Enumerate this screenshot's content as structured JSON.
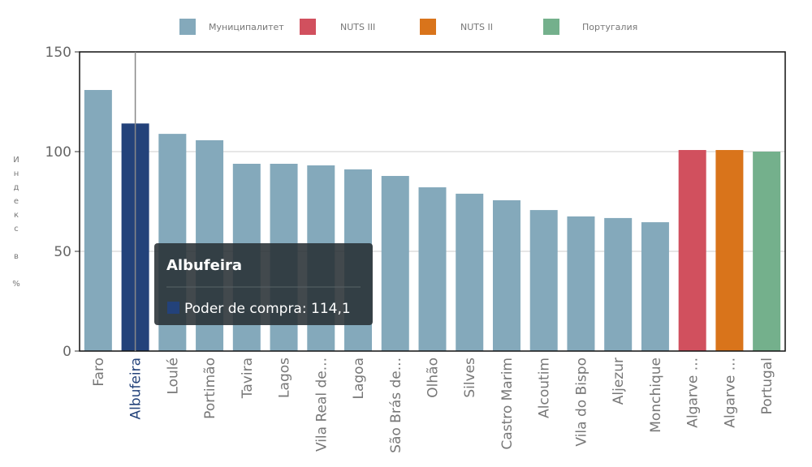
{
  "chart_data": {
    "type": "bar",
    "ylabel": "Индекс в %",
    "ylim": [
      0,
      150
    ],
    "yticks": [
      0,
      50,
      100,
      150
    ],
    "grid": true,
    "legend_placement": "top",
    "legend": [
      {
        "label": "Муниципалитет",
        "color": "#84a9bb"
      },
      {
        "label": "NUTS III",
        "color": "#d1505e"
      },
      {
        "label": "NUTS II",
        "color": "#d9741b"
      },
      {
        "label": "Португалия",
        "color": "#74b08c"
      }
    ],
    "categories": [
      "Faro",
      "Albufeira",
      "Loulé",
      "Portimão",
      "Tavira",
      "Lagos",
      "Vila Real de...",
      "Lagoa",
      "São Brás de...",
      "Olhão",
      "Silves",
      "Castro Marim",
      "Alcoutim",
      "Vila do Bispo",
      "Aljezur",
      "Monchique",
      "Algarve ...",
      "Algarve ...",
      "Portugal"
    ],
    "values": [
      130.9,
      114.1,
      108.9,
      105.7,
      93.9,
      93.9,
      93.1,
      91.1,
      87.8,
      82.1,
      78.9,
      75.6,
      70.7,
      67.5,
      66.7,
      64.6,
      100.8,
      100.8,
      100
    ],
    "groups": [
      0,
      0,
      0,
      0,
      0,
      0,
      0,
      0,
      0,
      0,
      0,
      0,
      0,
      0,
      0,
      0,
      1,
      2,
      3
    ],
    "highlight_index": 1,
    "highlight_color": "#23427a",
    "tooltip": {
      "title": "Albufeira",
      "series": "Poder de compra",
      "value": "114,1"
    }
  }
}
